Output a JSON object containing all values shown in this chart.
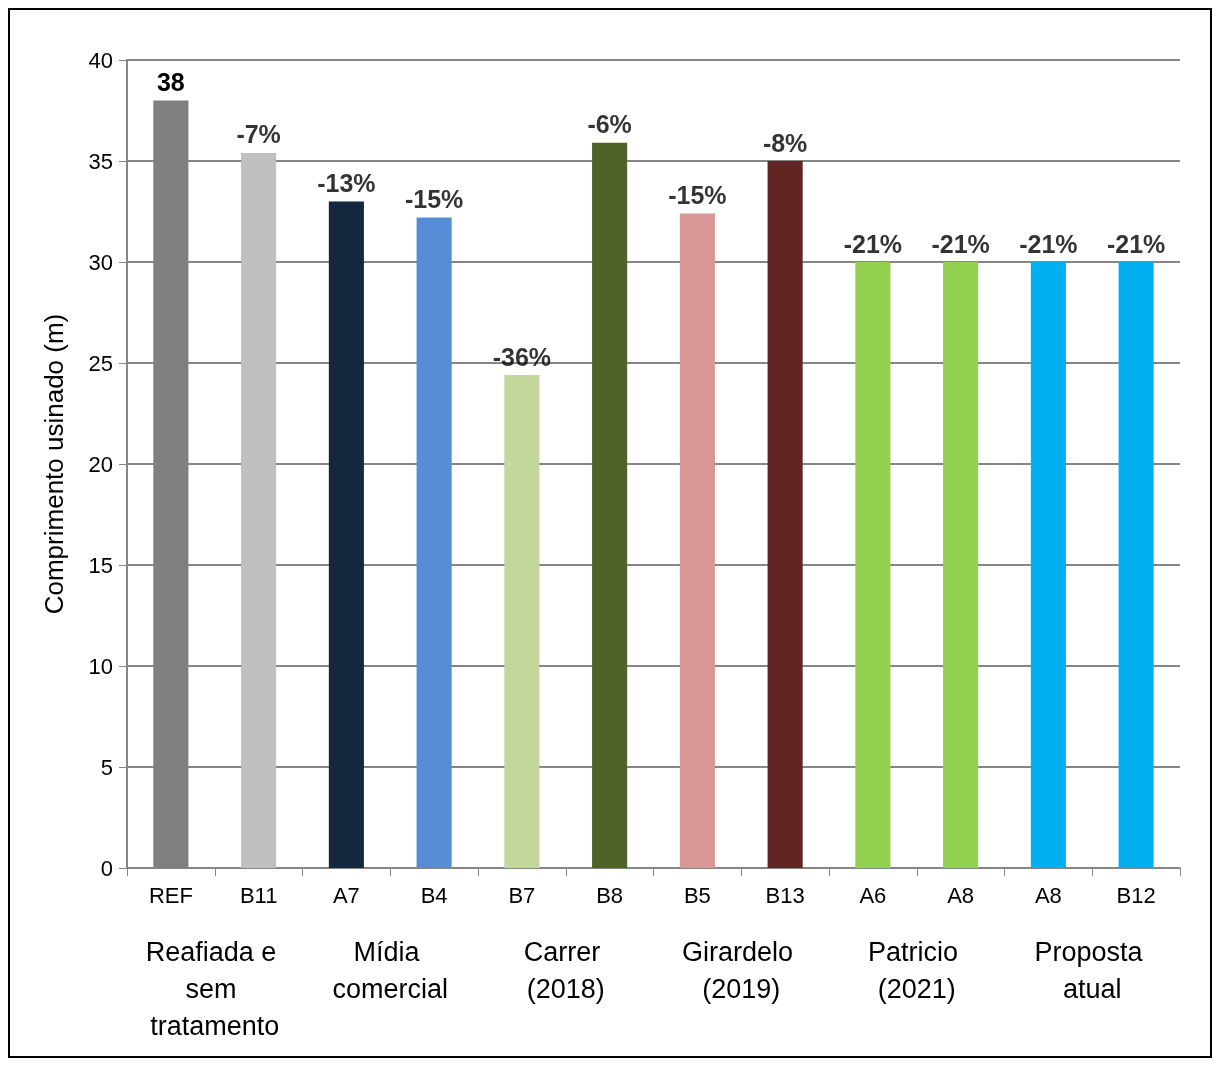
{
  "chart_data": {
    "type": "bar",
    "ylabel": "Comprimento usinado (m)",
    "categories": [
      "REF",
      "B11",
      "A7",
      "B4",
      "B7",
      "B8",
      "B5",
      "B13",
      "A6",
      "A8",
      "A8",
      "B12"
    ],
    "values": [
      38,
      35.4,
      33,
      32.2,
      24.4,
      35.9,
      32.4,
      35,
      30,
      30,
      30,
      30
    ],
    "colors": [
      "#7f7f7f",
      "#bfbfbf",
      "#13273f",
      "#558ed5",
      "#c3d69b",
      "#4f6228",
      "#d99694",
      "#632523",
      "#92d050",
      "#92d050",
      "#00b0f0",
      "#00b0f0"
    ],
    "value_labels": [
      "38",
      null,
      null,
      null,
      null,
      null,
      null,
      null,
      null,
      null,
      null,
      null
    ],
    "annotations": [
      "Reafiada e sem tratamento",
      "Mídia comercial",
      "Carrer (2018)",
      "Girardelo (2019)",
      "Patricio (2021)",
      "Proposta atual",
      {
        "text": "-7%",
        "x": "B11",
        "y": 35.4
      },
      {
        "text": "-13%",
        "x": "A7",
        "y": 33
      },
      {
        "text": "-15%",
        "x": "B4",
        "y": 32.2
      },
      {
        "text": "-36%",
        "x": "B7",
        "y": 24.4
      },
      {
        "text": "-6%",
        "x": "B8",
        "y": 35.9
      },
      {
        "text": "-15%",
        "x": "B5",
        "y": 32.4
      },
      {
        "text": "-8%",
        "x": "B13",
        "y": 35
      },
      {
        "text": "-21%",
        "x": "A6",
        "y": 30
      },
      {
        "text": "-21%",
        "x": "A8",
        "y": 30
      },
      {
        "text": "-21%",
        "x": "A8",
        "y": 30
      },
      {
        "text": "-21%",
        "x": "B12",
        "y": 30
      }
    ],
    "ylim": [
      0,
      40
    ],
    "yticks": [
      0,
      5,
      10,
      15,
      20,
      25,
      30,
      35,
      40
    ],
    "grid": "y"
  }
}
